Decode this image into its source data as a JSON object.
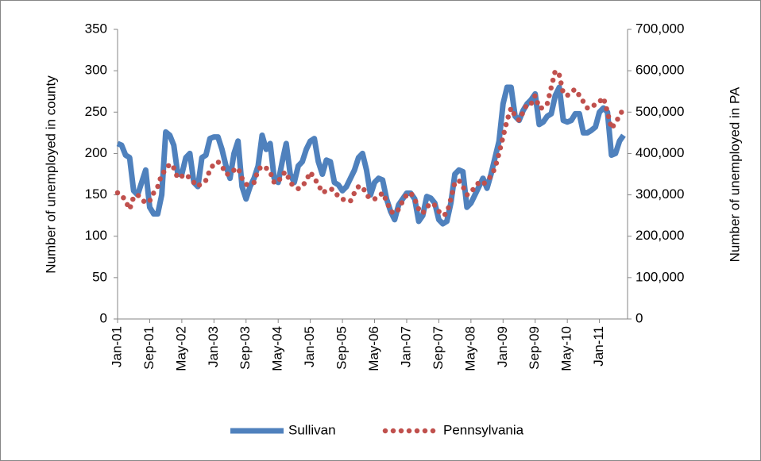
{
  "chart_data": {
    "type": "line",
    "y_label": "Number of unemployed in county",
    "y2_label": "Number of unemployed in PA",
    "categories": [
      "Jan-01",
      null,
      null,
      null,
      null,
      null,
      null,
      null,
      "Sep-01",
      null,
      null,
      null,
      null,
      null,
      null,
      null,
      "May-02",
      null,
      null,
      null,
      null,
      null,
      null,
      null,
      "Jan-03",
      null,
      null,
      null,
      null,
      null,
      null,
      null,
      "Sep-03",
      null,
      null,
      null,
      null,
      null,
      null,
      null,
      "May-04",
      null,
      null,
      null,
      null,
      null,
      null,
      null,
      "Jan-05",
      null,
      null,
      null,
      null,
      null,
      null,
      null,
      "Sep-05",
      null,
      null,
      null,
      null,
      null,
      null,
      null,
      "May-06",
      null,
      null,
      null,
      null,
      null,
      null,
      null,
      "Jan-07",
      null,
      null,
      null,
      null,
      null,
      null,
      null,
      "Sep-07",
      null,
      null,
      null,
      null,
      null,
      null,
      null,
      "May-08",
      null,
      null,
      null,
      null,
      null,
      null,
      null,
      "Jan-09",
      null,
      null,
      null,
      null,
      null,
      null,
      null,
      "Sep-09",
      null,
      null,
      null,
      null,
      null,
      null,
      null,
      "May-10",
      null,
      null,
      null,
      null,
      null,
      null,
      null,
      "Jan-11",
      null,
      null,
      null,
      null,
      null,
      null
    ],
    "ylim": [
      0,
      350
    ],
    "yticks": [
      0,
      50,
      100,
      150,
      200,
      250,
      300,
      350
    ],
    "y2lim": [
      0,
      700000
    ],
    "y2ticks": [
      {
        "value": 0,
        "label": "0"
      },
      {
        "value": 100000,
        "label": "100,000"
      },
      {
        "value": 200000,
        "label": "200,000"
      },
      {
        "value": 300000,
        "label": "300,000"
      },
      {
        "value": 400000,
        "label": "400,000"
      },
      {
        "value": 500000,
        "label": "500,000"
      },
      {
        "value": 600000,
        "label": "600,000"
      },
      {
        "value": 700000,
        "label": "700,000"
      }
    ],
    "grid": false,
    "legend": "bottom",
    "series": [
      {
        "name": "Sullivan",
        "color": "#4f81bd",
        "style": "solid",
        "values": [
          212,
          210,
          198,
          195,
          155,
          150,
          165,
          180,
          135,
          127,
          127,
          150,
          226,
          222,
          210,
          175,
          175,
          195,
          200,
          165,
          160,
          195,
          198,
          218,
          220,
          220,
          205,
          185,
          170,
          200,
          215,
          160,
          145,
          160,
          170,
          185,
          222,
          205,
          212,
          170,
          165,
          190,
          212,
          175,
          165,
          185,
          190,
          205,
          215,
          218,
          190,
          175,
          192,
          190,
          165,
          162,
          155,
          160,
          170,
          180,
          195,
          200,
          180,
          150,
          165,
          170,
          168,
          145,
          130,
          120,
          138,
          145,
          152,
          152,
          145,
          118,
          125,
          148,
          146,
          140,
          120,
          115,
          118,
          140,
          175,
          180,
          178,
          135,
          140,
          150,
          160,
          170,
          158,
          175,
          195,
          215,
          260,
          280,
          280,
          245,
          240,
          252,
          260,
          265,
          272,
          235,
          238,
          245,
          248,
          270,
          280,
          240,
          238,
          240,
          248,
          248,
          225,
          225,
          228,
          232,
          250,
          255,
          250,
          198,
          200,
          215,
          222
        ]
      },
      {
        "name": "Pennsylvania",
        "color": "#c0504d",
        "style": "dotted",
        "axis": "y2",
        "values": [
          305000,
          300000,
          285000,
          265000,
          295000,
          300000,
          290000,
          280000,
          285000,
          305000,
          320000,
          350000,
          360000,
          375000,
          365000,
          340000,
          345000,
          350000,
          340000,
          330000,
          320000,
          330000,
          335000,
          360000,
          375000,
          380000,
          370000,
          350000,
          350000,
          360000,
          365000,
          340000,
          325000,
          325000,
          330000,
          360000,
          370000,
          365000,
          355000,
          330000,
          330000,
          350000,
          355000,
          330000,
          320000,
          315000,
          320000,
          335000,
          355000,
          340000,
          325000,
          305000,
          310000,
          315000,
          310000,
          295000,
          290000,
          285000,
          285000,
          305000,
          320000,
          320000,
          300000,
          290000,
          290000,
          295000,
          305000,
          285000,
          260000,
          255000,
          265000,
          285000,
          300000,
          305000,
          290000,
          265000,
          255000,
          270000,
          280000,
          275000,
          260000,
          250000,
          255000,
          290000,
          330000,
          335000,
          320000,
          300000,
          305000,
          320000,
          330000,
          325000,
          335000,
          345000,
          365000,
          400000,
          440000,
          480000,
          510000,
          490000,
          480000,
          500000,
          520000,
          520000,
          540000,
          510000,
          510000,
          520000,
          560000,
          600000,
          590000,
          545000,
          540000,
          550000,
          555000,
          540000,
          525000,
          510000,
          510000,
          520000,
          525000,
          535000,
          500000,
          460000,
          475000,
          490000,
          510000
        ]
      }
    ]
  }
}
